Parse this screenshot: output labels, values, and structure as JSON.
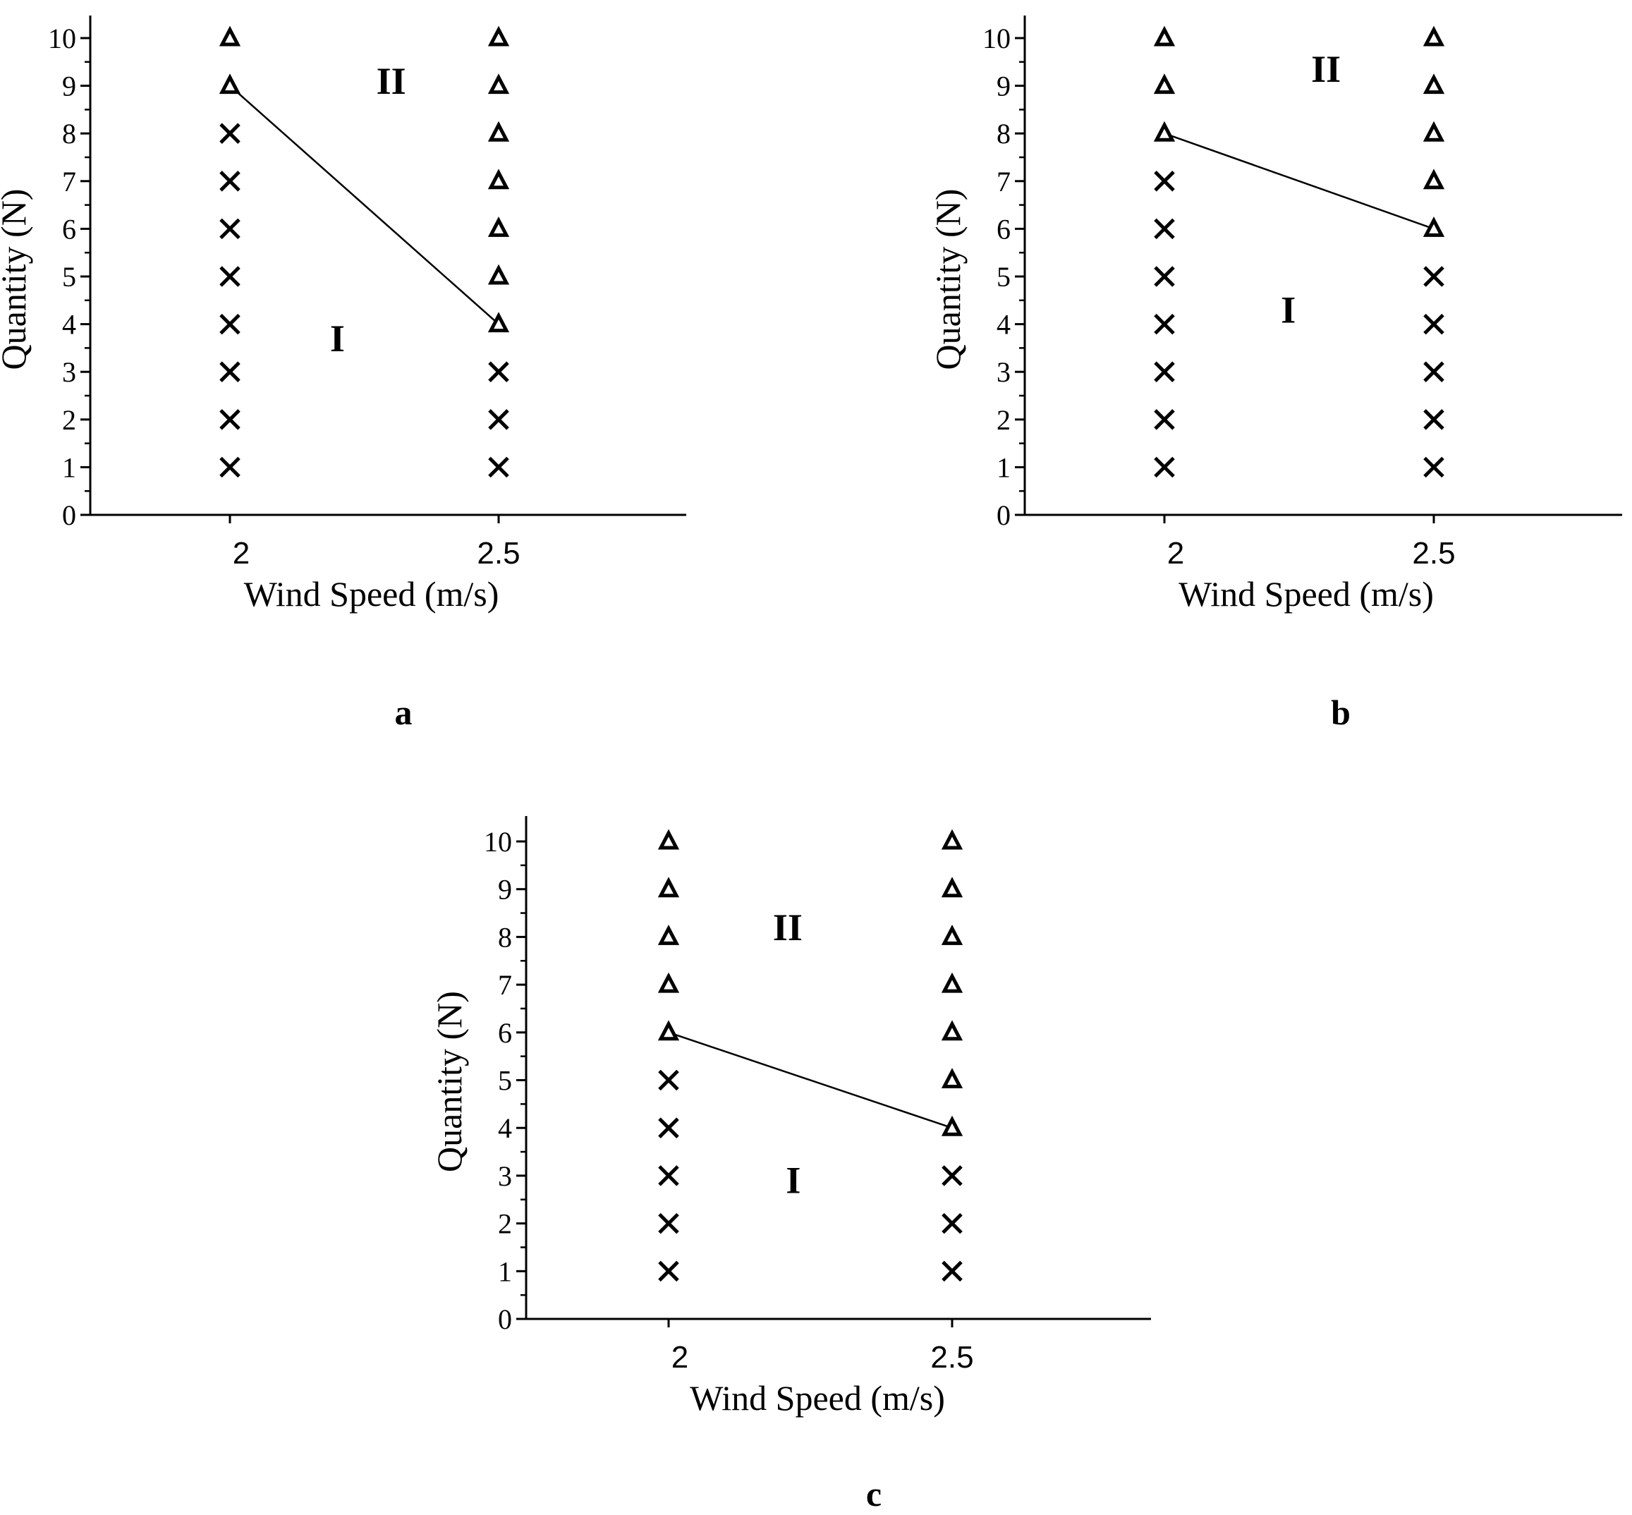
{
  "chart_data": [
    {
      "type": "scatter",
      "panel_label": "a",
      "xlabel": "Wind Speed (m/s)",
      "ylabel": "Quantity (N)",
      "ylim": [
        0,
        10.5
      ],
      "y_ticks": [
        "0",
        "1",
        "2",
        "3",
        "4",
        "5",
        "6",
        "7",
        "8",
        "9",
        "10"
      ],
      "x_ticks": [
        "2",
        "2.5"
      ],
      "x_tick_values": [
        2,
        2.5
      ],
      "series": [
        {
          "name": "cross",
          "marker": "x",
          "points": [
            [
              2,
              1
            ],
            [
              2,
              2
            ],
            [
              2,
              3
            ],
            [
              2,
              4
            ],
            [
              2,
              5
            ],
            [
              2,
              6
            ],
            [
              2,
              7
            ],
            [
              2,
              8
            ],
            [
              2.5,
              1
            ],
            [
              2.5,
              2
            ],
            [
              2.5,
              3
            ]
          ]
        },
        {
          "name": "triangle",
          "marker": "triangle",
          "points": [
            [
              2,
              9
            ],
            [
              2,
              10
            ],
            [
              2.5,
              4
            ],
            [
              2.5,
              5
            ],
            [
              2.5,
              6
            ],
            [
              2.5,
              7
            ],
            [
              2.5,
              8
            ],
            [
              2.5,
              9
            ],
            [
              2.5,
              10
            ]
          ]
        }
      ],
      "boundary_line": [
        [
          2,
          9
        ],
        [
          2.5,
          4
        ]
      ],
      "regions": [
        {
          "label": "II",
          "x": 2.3,
          "y": 9.1
        },
        {
          "label": "I",
          "x": 2.2,
          "y": 3.7
        }
      ]
    },
    {
      "type": "scatter",
      "panel_label": "b",
      "xlabel": "Wind Speed (m/s)",
      "ylabel": "Quantity (N)",
      "ylim": [
        0,
        10.5
      ],
      "y_ticks": [
        "0",
        "1",
        "2",
        "3",
        "4",
        "5",
        "6",
        "7",
        "8",
        "9",
        "10"
      ],
      "x_ticks": [
        "2",
        "2.5"
      ],
      "x_tick_values": [
        2,
        2.5
      ],
      "series": [
        {
          "name": "cross",
          "marker": "x",
          "points": [
            [
              2,
              1
            ],
            [
              2,
              2
            ],
            [
              2,
              3
            ],
            [
              2,
              4
            ],
            [
              2,
              5
            ],
            [
              2,
              6
            ],
            [
              2,
              7
            ],
            [
              2.5,
              1
            ],
            [
              2.5,
              2
            ],
            [
              2.5,
              3
            ],
            [
              2.5,
              4
            ],
            [
              2.5,
              5
            ]
          ]
        },
        {
          "name": "triangle",
          "marker": "triangle",
          "points": [
            [
              2,
              8
            ],
            [
              2,
              9
            ],
            [
              2,
              10
            ],
            [
              2.5,
              6
            ],
            [
              2.5,
              7
            ],
            [
              2.5,
              8
            ],
            [
              2.5,
              9
            ],
            [
              2.5,
              10
            ]
          ]
        }
      ],
      "boundary_line": [
        [
          2,
          8
        ],
        [
          2.5,
          6
        ]
      ],
      "regions": [
        {
          "label": "II",
          "x": 2.3,
          "y": 9.35
        },
        {
          "label": "I",
          "x": 2.23,
          "y": 4.3
        }
      ]
    },
    {
      "type": "scatter",
      "panel_label": "c",
      "xlabel": "Wind Speed (m/s)",
      "ylabel": "Quantity (N)",
      "ylim": [
        0,
        10.5
      ],
      "y_ticks": [
        "0",
        "1",
        "2",
        "3",
        "4",
        "5",
        "6",
        "7",
        "8",
        "9",
        "10"
      ],
      "x_ticks": [
        "2",
        "2.5"
      ],
      "x_tick_values": [
        2,
        2.5
      ],
      "series": [
        {
          "name": "cross",
          "marker": "x",
          "points": [
            [
              2,
              1
            ],
            [
              2,
              2
            ],
            [
              2,
              3
            ],
            [
              2,
              4
            ],
            [
              2,
              5
            ],
            [
              2.5,
              1
            ],
            [
              2.5,
              2
            ],
            [
              2.5,
              3
            ]
          ]
        },
        {
          "name": "triangle",
          "marker": "triangle",
          "points": [
            [
              2,
              6
            ],
            [
              2,
              7
            ],
            [
              2,
              8
            ],
            [
              2,
              9
            ],
            [
              2,
              10
            ],
            [
              2.5,
              4
            ],
            [
              2.5,
              5
            ],
            [
              2.5,
              6
            ],
            [
              2.5,
              7
            ],
            [
              2.5,
              8
            ],
            [
              2.5,
              9
            ],
            [
              2.5,
              10
            ]
          ]
        }
      ],
      "boundary_line": [
        [
          2,
          6
        ],
        [
          2.5,
          4
        ]
      ],
      "regions": [
        {
          "label": "II",
          "x": 2.21,
          "y": 8.2
        },
        {
          "label": "I",
          "x": 2.22,
          "y": 2.9
        }
      ]
    }
  ]
}
